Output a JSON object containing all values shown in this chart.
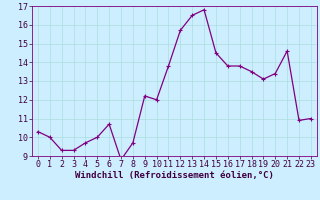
{
  "x": [
    0,
    1,
    2,
    3,
    4,
    5,
    6,
    7,
    8,
    9,
    10,
    11,
    12,
    13,
    14,
    15,
    16,
    17,
    18,
    19,
    20,
    21,
    22,
    23
  ],
  "y": [
    10.3,
    10.0,
    9.3,
    9.3,
    9.7,
    10.0,
    10.7,
    8.8,
    9.7,
    12.2,
    12.0,
    13.8,
    15.7,
    16.5,
    16.8,
    14.5,
    13.8,
    13.8,
    13.5,
    13.1,
    13.4,
    14.6,
    10.9,
    11.0
  ],
  "line_color": "#800080",
  "marker": "+",
  "marker_size": 3,
  "bg_color": "#cceeff",
  "grid_color": "#aadddd",
  "xlabel": "Windchill (Refroidissement éolien,°C)",
  "ylim": [
    9,
    17
  ],
  "xlim_min": -0.5,
  "xlim_max": 23.5,
  "yticks": [
    9,
    10,
    11,
    12,
    13,
    14,
    15,
    16,
    17
  ],
  "xticks": [
    0,
    1,
    2,
    3,
    4,
    5,
    6,
    7,
    8,
    9,
    10,
    11,
    12,
    13,
    14,
    15,
    16,
    17,
    18,
    19,
    20,
    21,
    22,
    23
  ],
  "xlabel_fontsize": 6.5,
  "tick_fontsize": 6,
  "line_width": 0.9,
  "marker_edge_width": 0.8
}
